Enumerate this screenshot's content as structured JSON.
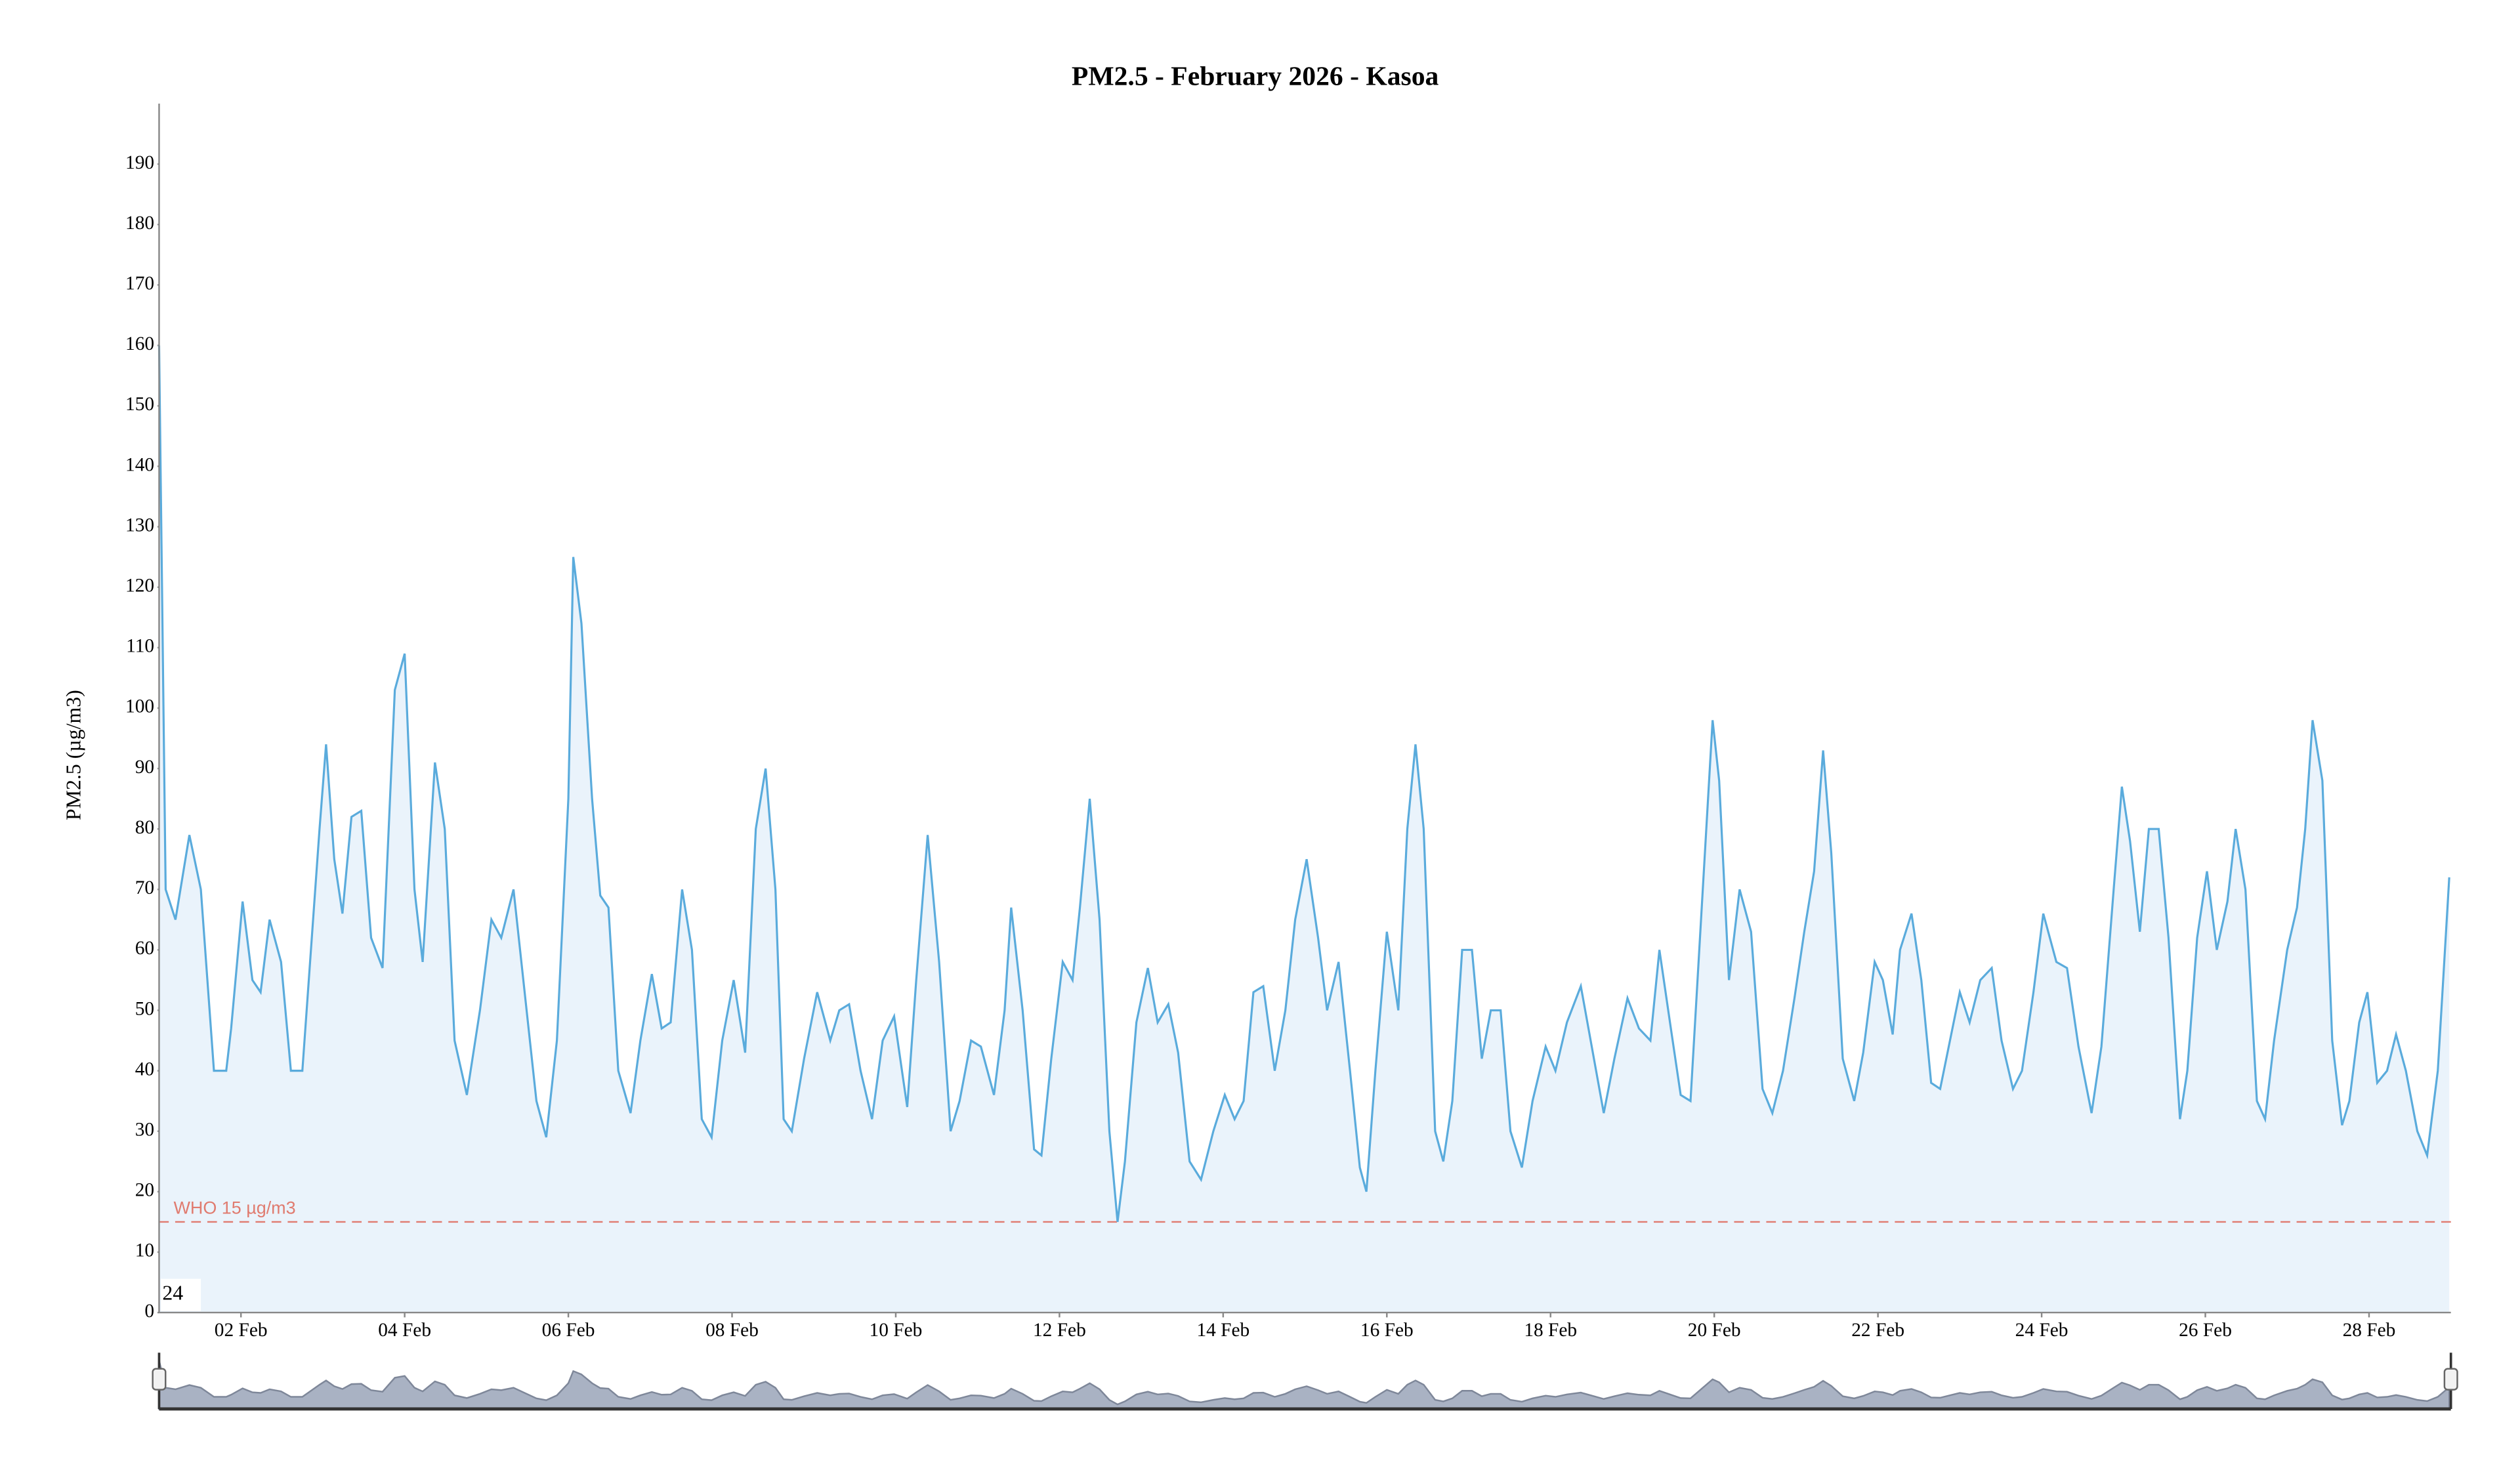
{
  "chart_data": {
    "type": "line",
    "title": "PM2.5 - February 2026 - Kasoa",
    "y_label": "PM2.5 (µg/m3)",
    "color": "#5aabdc",
    "area_color": "#eaf3fb",
    "x": [
      1.0,
      1.08,
      1.2,
      1.37,
      1.51,
      1.67,
      1.82,
      1.88,
      2.02,
      2.14,
      2.24,
      2.35,
      2.49,
      2.61,
      2.75,
      2.96,
      3.04,
      3.14,
      3.24,
      3.35,
      3.47,
      3.59,
      3.73,
      3.88,
      4.0,
      4.12,
      4.22,
      4.37,
      4.49,
      4.61,
      4.76,
      4.92,
      5.06,
      5.18,
      5.33,
      5.45,
      5.61,
      5.73,
      5.86,
      6.0,
      6.06,
      6.16,
      6.29,
      6.39,
      6.49,
      6.61,
      6.76,
      6.88,
      7.02,
      7.14,
      7.25,
      7.39,
      7.51,
      7.63,
      7.75,
      7.88,
      8.02,
      8.16,
      8.29,
      8.41,
      8.53,
      8.63,
      8.73,
      8.88,
      9.04,
      9.2,
      9.31,
      9.43,
      9.57,
      9.71,
      9.84,
      9.98,
      10.14,
      10.25,
      10.39,
      10.53,
      10.67,
      10.78,
      10.92,
      11.04,
      11.2,
      11.33,
      11.41,
      11.55,
      11.69,
      11.78,
      11.9,
      12.04,
      12.16,
      12.25,
      12.37,
      12.49,
      12.61,
      12.71,
      12.8,
      12.94,
      13.08,
      13.2,
      13.33,
      13.45,
      13.59,
      13.73,
      13.88,
      14.02,
      14.14,
      14.25,
      14.37,
      14.49,
      14.63,
      14.76,
      14.88,
      15.02,
      15.16,
      15.27,
      15.41,
      15.55,
      15.67,
      15.75,
      15.86,
      16.0,
      16.14,
      16.25,
      16.35,
      16.45,
      16.59,
      16.69,
      16.8,
      16.92,
      17.04,
      17.16,
      17.27,
      17.39,
      17.51,
      17.65,
      17.78,
      17.94,
      18.06,
      18.2,
      18.37,
      18.53,
      18.65,
      18.78,
      18.94,
      19.08,
      19.22,
      19.33,
      19.47,
      19.59,
      19.71,
      19.86,
      19.98,
      20.06,
      20.18,
      20.31,
      20.45,
      20.59,
      20.71,
      20.84,
      20.98,
      21.1,
      21.22,
      21.33,
      21.43,
      21.57,
      21.71,
      21.82,
      21.96,
      22.06,
      22.18,
      22.27,
      22.41,
      22.53,
      22.65,
      22.76,
      22.88,
      23.0,
      23.12,
      23.25,
      23.39,
      23.51,
      23.65,
      23.76,
      23.9,
      24.02,
      24.18,
      24.31,
      24.45,
      24.61,
      24.73,
      24.88,
      24.98,
      25.08,
      25.2,
      25.31,
      25.43,
      25.55,
      25.69,
      25.78,
      25.9,
      26.02,
      26.14,
      26.27,
      26.37,
      26.49,
      26.63,
      26.73,
      26.84,
      27.0,
      27.12,
      27.22,
      27.31,
      27.43,
      27.55,
      27.67,
      27.76,
      27.88,
      27.98,
      28.1,
      28.22,
      28.33,
      28.45,
      28.59,
      28.71,
      28.84,
      28.98
    ],
    "values": [
      160,
      70,
      65,
      79,
      70,
      40,
      40,
      47,
      68,
      55,
      53,
      65,
      58,
      40,
      40,
      80,
      94,
      75,
      66,
      82,
      83,
      62,
      57,
      103,
      109,
      70,
      58,
      91,
      80,
      45,
      36,
      50,
      65,
      62,
      70,
      55,
      35,
      29,
      45,
      85,
      125,
      114,
      85,
      69,
      67,
      40,
      33,
      45,
      56,
      47,
      48,
      70,
      60,
      32,
      29,
      45,
      55,
      43,
      80,
      90,
      70,
      32,
      30,
      42,
      53,
      45,
      50,
      51,
      40,
      32,
      45,
      49,
      34,
      55,
      79,
      58,
      30,
      35,
      45,
      44,
      36,
      50,
      67,
      50,
      27,
      26,
      42,
      58,
      55,
      67,
      85,
      65,
      30,
      15,
      25,
      48,
      57,
      48,
      51,
      43,
      25,
      22,
      30,
      36,
      32,
      35,
      53,
      54,
      40,
      50,
      65,
      75,
      62,
      50,
      58,
      40,
      24,
      20,
      40,
      63,
      50,
      80,
      94,
      80,
      30,
      25,
      35,
      60,
      60,
      42,
      50,
      50,
      30,
      24,
      35,
      44,
      40,
      48,
      54,
      42,
      33,
      42,
      52,
      47,
      45,
      60,
      47,
      36,
      35,
      70,
      98,
      88,
      55,
      70,
      63,
      37,
      33,
      40,
      52,
      63,
      73,
      93,
      76,
      42,
      35,
      43,
      58,
      55,
      46,
      60,
      66,
      55,
      38,
      37,
      45,
      53,
      48,
      55,
      57,
      45,
      37,
      40,
      53,
      66,
      58,
      57,
      44,
      33,
      44,
      70,
      87,
      78,
      63,
      80,
      80,
      62,
      32,
      40,
      62,
      73,
      60,
      68,
      80,
      70,
      35,
      32,
      45,
      60,
      67,
      80,
      98,
      88,
      45,
      31,
      35,
      48,
      53,
      38,
      40,
      46,
      40,
      30,
      26,
      40,
      72
    ],
    "xlim": [
      1,
      29
    ],
    "xticks": [
      {
        "value": 2,
        "label": "02 Feb"
      },
      {
        "value": 4,
        "label": "04 Feb"
      },
      {
        "value": 6,
        "label": "06 Feb"
      },
      {
        "value": 8,
        "label": "08 Feb"
      },
      {
        "value": 10,
        "label": "10 Feb"
      },
      {
        "value": 12,
        "label": "12 Feb"
      },
      {
        "value": 14,
        "label": "14 Feb"
      },
      {
        "value": 16,
        "label": "16 Feb"
      },
      {
        "value": 18,
        "label": "18 Feb"
      },
      {
        "value": 20,
        "label": "20 Feb"
      },
      {
        "value": 22,
        "label": "22 Feb"
      },
      {
        "value": 24,
        "label": "24 Feb"
      },
      {
        "value": 26,
        "label": "26 Feb"
      },
      {
        "value": 28,
        "label": "28 Feb"
      }
    ],
    "ylim": [
      0,
      200
    ],
    "yticks": [
      0,
      10,
      20,
      30,
      40,
      50,
      60,
      70,
      80,
      90,
      100,
      110,
      120,
      130,
      140,
      150,
      160,
      170,
      180,
      190
    ],
    "threshold": {
      "value": 15,
      "label": "WHO 15 µg/m3",
      "color": "#e07b6f"
    },
    "corner_label": "24"
  }
}
